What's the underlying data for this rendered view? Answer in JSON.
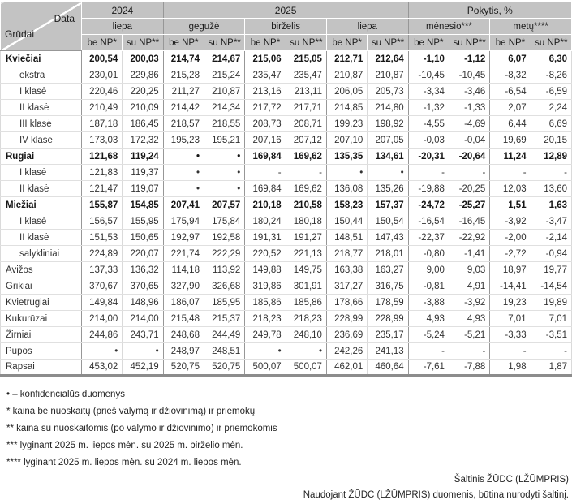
{
  "table": {
    "corner": {
      "top_label": "Data",
      "bottom_label": "Grūdai"
    },
    "col_groups": [
      {
        "label": "2024",
        "months": [
          "liepa"
        ]
      },
      {
        "label": "2025",
        "months": [
          "gegužė",
          "birželis",
          "liepa"
        ]
      },
      {
        "label": "Pokytis, %",
        "months": [
          "mėnesio***",
          "metų****"
        ]
      }
    ],
    "price_headers": [
      "be NP*",
      "su NP**"
    ],
    "rows": [
      {
        "label": "Kviečiai",
        "style": "group",
        "sep": false,
        "values": [
          "200,54",
          "200,03",
          "214,74",
          "214,67",
          "215,06",
          "215,05",
          "212,71",
          "212,64",
          "-1,10",
          "-1,12",
          "6,07",
          "6,30"
        ]
      },
      {
        "label": "ekstra",
        "style": "sub",
        "sep": false,
        "values": [
          "230,01",
          "229,86",
          "215,28",
          "215,24",
          "235,47",
          "235,47",
          "210,87",
          "210,87",
          "-10,45",
          "-10,45",
          "-8,32",
          "-8,26"
        ]
      },
      {
        "label": "I klasė",
        "style": "sub",
        "sep": false,
        "values": [
          "220,46",
          "220,25",
          "211,27",
          "210,87",
          "213,16",
          "213,11",
          "206,05",
          "205,73",
          "-3,34",
          "-3,46",
          "-6,54",
          "-6,59"
        ]
      },
      {
        "label": "II klasė",
        "style": "sub",
        "sep": false,
        "values": [
          "210,49",
          "210,09",
          "214,42",
          "214,34",
          "217,72",
          "217,71",
          "214,85",
          "214,80",
          "-1,32",
          "-1,33",
          "2,07",
          "2,24"
        ]
      },
      {
        "label": "III klasė",
        "style": "sub",
        "sep": false,
        "values": [
          "187,18",
          "186,45",
          "218,57",
          "218,55",
          "208,73",
          "208,71",
          "199,23",
          "198,92",
          "-4,55",
          "-4,69",
          "6,44",
          "6,69"
        ]
      },
      {
        "label": "IV klasė",
        "style": "sub",
        "sep": false,
        "values": [
          "173,03",
          "172,32",
          "195,23",
          "195,21",
          "207,16",
          "207,12",
          "207,10",
          "207,05",
          "-0,03",
          "-0,04",
          "19,69",
          "20,15"
        ]
      },
      {
        "label": "Rugiai",
        "style": "group",
        "sep": true,
        "values": [
          "121,68",
          "119,24",
          "•",
          "•",
          "169,84",
          "169,62",
          "135,35",
          "134,61",
          "-20,31",
          "-20,64",
          "11,24",
          "12,89"
        ]
      },
      {
        "label": "I klasė",
        "style": "sub",
        "sep": false,
        "values": [
          "121,83",
          "119,37",
          "•",
          "•",
          "-",
          "-",
          "•",
          "•",
          "-",
          "-",
          "-",
          "-"
        ]
      },
      {
        "label": "II klasė",
        "style": "sub",
        "sep": false,
        "values": [
          "121,47",
          "119,07",
          "•",
          "•",
          "169,84",
          "169,62",
          "136,08",
          "135,26",
          "-19,88",
          "-20,25",
          "12,03",
          "13,60"
        ]
      },
      {
        "label": "Miežiai",
        "style": "group",
        "sep": true,
        "values": [
          "155,87",
          "154,85",
          "207,41",
          "207,57",
          "210,18",
          "210,58",
          "158,23",
          "157,37",
          "-24,72",
          "-25,27",
          "1,51",
          "1,63"
        ]
      },
      {
        "label": "I klasė",
        "style": "sub",
        "sep": false,
        "values": [
          "156,57",
          "155,95",
          "175,94",
          "175,84",
          "180,24",
          "180,18",
          "150,44",
          "150,54",
          "-16,54",
          "-16,45",
          "-3,92",
          "-3,47"
        ]
      },
      {
        "label": "II klasė",
        "style": "sub",
        "sep": false,
        "values": [
          "151,53",
          "150,65",
          "192,97",
          "192,58",
          "191,31",
          "191,27",
          "148,51",
          "147,43",
          "-22,37",
          "-22,92",
          "-2,00",
          "-2,14"
        ]
      },
      {
        "label": "salykliniai",
        "style": "sub",
        "sep": false,
        "values": [
          "224,89",
          "220,07",
          "221,74",
          "222,29",
          "220,52",
          "221,13",
          "218,77",
          "218,01",
          "-0,80",
          "-1,41",
          "-2,72",
          "-0,94"
        ]
      },
      {
        "label": "Avižos",
        "style": "plain",
        "sep": true,
        "values": [
          "137,33",
          "136,32",
          "114,18",
          "113,92",
          "149,88",
          "149,75",
          "163,38",
          "163,27",
          "9,00",
          "9,03",
          "18,97",
          "19,77"
        ]
      },
      {
        "label": "Grikiai",
        "style": "plain",
        "sep": false,
        "values": [
          "370,67",
          "370,65",
          "327,90",
          "326,68",
          "319,86",
          "301,91",
          "317,27",
          "316,75",
          "-0,81",
          "4,91",
          "-14,41",
          "-14,54"
        ]
      },
      {
        "label": "Kvietrugiai",
        "style": "plain",
        "sep": false,
        "values": [
          "149,84",
          "148,96",
          "186,07",
          "185,95",
          "185,86",
          "185,86",
          "178,66",
          "178,59",
          "-3,88",
          "-3,92",
          "19,23",
          "19,89"
        ]
      },
      {
        "label": "Kukurūzai",
        "style": "plain",
        "sep": false,
        "values": [
          "214,00",
          "214,00",
          "215,48",
          "215,37",
          "218,23",
          "218,23",
          "228,99",
          "228,99",
          "4,93",
          "4,93",
          "7,01",
          "7,01"
        ]
      },
      {
        "label": "Žirniai",
        "style": "plain",
        "sep": true,
        "values": [
          "244,86",
          "243,71",
          "248,68",
          "244,49",
          "249,78",
          "248,10",
          "236,69",
          "235,17",
          "-5,24",
          "-5,21",
          "-3,33",
          "-3,51"
        ]
      },
      {
        "label": "Pupos",
        "style": "plain",
        "sep": false,
        "values": [
          "•",
          "•",
          "248,97",
          "248,51",
          "•",
          "•",
          "242,26",
          "241,13",
          "-",
          "-",
          "-",
          "-"
        ]
      },
      {
        "label": "Rapsai",
        "style": "plain",
        "sep": true,
        "values": [
          "453,02",
          "452,19",
          "520,75",
          "520,75",
          "500,07",
          "500,07",
          "462,01",
          "460,64",
          "-7,61",
          "-7,88",
          "1,98",
          "1,87"
        ]
      }
    ]
  },
  "footnotes": [
    "• – konfidencialūs duomenys",
    "*  kaina be nuoskaitų (prieš valymą ir džiovinimą) ir priemokų",
    "** kaina su nuoskaitomis (po valymo ir džiovinimo) ir priemokomis",
    "*** lyginant  2025 m. liepos mėn. su 2025 m. birželio mėn.",
    "**** lyginant  2025 m.  liepos mėn. su 2024 m. liepos mėn."
  ],
  "source": {
    "line1": "Šaltinis ŽŪDC (LŽŪMPRIS)",
    "line2": "Naudojant ŽŪDC (LŽŪMPRIS) duomenis, būtina nurodyti šaltinį."
  },
  "colors": {
    "header_bg": "#c3c3c3",
    "line_dark": "#979797",
    "line_light": "#dadada",
    "bottom_border": "#8c8c8c"
  }
}
